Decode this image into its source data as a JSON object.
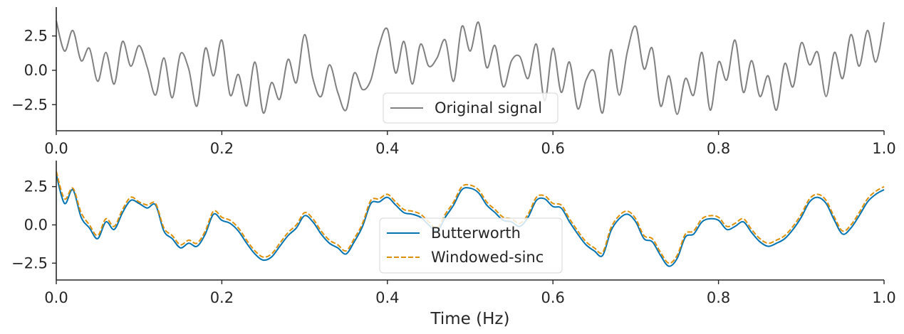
{
  "figure": {
    "xlabel": "Time (Hz)"
  },
  "chart_data": [
    {
      "type": "line",
      "xlim": [
        0.0,
        1.0
      ],
      "ylim": [
        -4.4,
        4.6
      ],
      "x_ticks": [
        0.0,
        0.2,
        0.4,
        0.6,
        0.8,
        1.0
      ],
      "x_tick_labels": [
        "0.0",
        "0.2",
        "0.4",
        "0.6",
        "0.8",
        "1.0"
      ],
      "y_ticks": [
        2.5,
        0.0,
        -2.5
      ],
      "y_tick_labels": [
        "2.5",
        "0.0",
        "−2.5"
      ],
      "legend_position": "bottom-center",
      "series": [
        {
          "name": "Original signal",
          "color": "#808080",
          "style": "solid",
          "x": [
            0.0,
            0.01,
            0.02,
            0.03,
            0.04,
            0.05,
            0.06,
            0.07,
            0.08,
            0.09,
            0.1,
            0.11,
            0.12,
            0.13,
            0.14,
            0.15,
            0.16,
            0.17,
            0.18,
            0.19,
            0.2,
            0.21,
            0.22,
            0.23,
            0.24,
            0.25,
            0.26,
            0.27,
            0.28,
            0.29,
            0.3,
            0.31,
            0.32,
            0.33,
            0.34,
            0.35,
            0.36,
            0.37,
            0.38,
            0.39,
            0.4,
            0.41,
            0.42,
            0.43,
            0.44,
            0.45,
            0.46,
            0.47,
            0.48,
            0.49,
            0.5,
            0.51,
            0.52,
            0.53,
            0.54,
            0.55,
            0.56,
            0.57,
            0.58,
            0.59,
            0.6,
            0.61,
            0.62,
            0.63,
            0.64,
            0.65,
            0.66,
            0.67,
            0.68,
            0.69,
            0.7,
            0.71,
            0.72,
            0.73,
            0.74,
            0.75,
            0.76,
            0.77,
            0.78,
            0.79,
            0.8,
            0.81,
            0.82,
            0.83,
            0.84,
            0.85,
            0.86,
            0.87,
            0.88,
            0.89,
            0.9,
            0.91,
            0.92,
            0.93,
            0.94,
            0.95,
            0.96,
            0.97,
            0.98,
            0.99,
            1.0
          ],
          "values": [
            3.6,
            1.4,
            2.9,
            0.7,
            1.6,
            -0.8,
            1.3,
            -1.0,
            2.1,
            0.3,
            1.8,
            0.2,
            -1.8,
            0.9,
            -2.0,
            1.2,
            0.1,
            -2.6,
            1.6,
            -0.4,
            2.2,
            -1.8,
            -0.3,
            -2.6,
            0.6,
            -3.1,
            -0.9,
            -2.1,
            0.8,
            -0.9,
            2.6,
            -0.6,
            -1.9,
            0.4,
            -1.6,
            -2.9,
            -0.2,
            -1.4,
            -0.7,
            1.8,
            3.0,
            -0.2,
            2.1,
            -1.0,
            1.9,
            0.3,
            0.9,
            2.2,
            -0.8,
            3.2,
            1.4,
            3.5,
            0.2,
            1.8,
            -1.2,
            0.7,
            1.0,
            -0.6,
            1.9,
            -2.2,
            1.6,
            -1.6,
            0.6,
            -2.8,
            -0.7,
            -0.1,
            -3.1,
            1.5,
            -1.8,
            1.4,
            3.2,
            0.1,
            1.6,
            -2.6,
            -0.4,
            -3.2,
            -0.6,
            -1.8,
            1.3,
            -2.9,
            0.6,
            -0.7,
            2.2,
            -1.6,
            0.7,
            -1.9,
            -0.4,
            -2.9,
            0.5,
            -1.2,
            2.0,
            0.4,
            1.3,
            -1.9,
            1.3,
            -0.6,
            2.6,
            0.3,
            2.9,
            0.6,
            3.5
          ]
        }
      ]
    },
    {
      "type": "line",
      "xlim": [
        0.0,
        1.0
      ],
      "ylim": [
        -3.6,
        4.2
      ],
      "x_ticks": [
        0.0,
        0.2,
        0.4,
        0.6,
        0.8,
        1.0
      ],
      "x_tick_labels": [
        "0.0",
        "0.2",
        "0.4",
        "0.6",
        "0.8",
        "1.0"
      ],
      "y_ticks": [
        2.5,
        0.0,
        -2.5
      ],
      "y_tick_labels": [
        "2.5",
        "0.0",
        "−2.5"
      ],
      "xlabel": "Time (Hz)",
      "legend_position": "bottom-center",
      "series": [
        {
          "name": "Butterworth",
          "color": "#0173b2",
          "style": "solid",
          "x": [
            0.0,
            0.01,
            0.02,
            0.03,
            0.04,
            0.05,
            0.06,
            0.07,
            0.08,
            0.09,
            0.1,
            0.11,
            0.12,
            0.13,
            0.14,
            0.15,
            0.16,
            0.17,
            0.18,
            0.19,
            0.2,
            0.21,
            0.22,
            0.23,
            0.24,
            0.25,
            0.26,
            0.27,
            0.28,
            0.29,
            0.3,
            0.31,
            0.32,
            0.33,
            0.34,
            0.35,
            0.36,
            0.37,
            0.38,
            0.39,
            0.4,
            0.41,
            0.42,
            0.43,
            0.44,
            0.45,
            0.46,
            0.47,
            0.48,
            0.49,
            0.5,
            0.51,
            0.52,
            0.53,
            0.54,
            0.55,
            0.56,
            0.57,
            0.58,
            0.59,
            0.6,
            0.61,
            0.62,
            0.63,
            0.64,
            0.65,
            0.66,
            0.67,
            0.68,
            0.69,
            0.7,
            0.71,
            0.72,
            0.73,
            0.74,
            0.75,
            0.76,
            0.77,
            0.78,
            0.79,
            0.8,
            0.81,
            0.82,
            0.83,
            0.84,
            0.85,
            0.86,
            0.87,
            0.88,
            0.89,
            0.9,
            0.91,
            0.92,
            0.93,
            0.94,
            0.95,
            0.96,
            0.97,
            0.98,
            0.99,
            1.0
          ],
          "values": [
            3.3,
            1.4,
            2.3,
            0.5,
            -0.2,
            -0.9,
            0.2,
            -0.3,
            0.8,
            1.6,
            1.4,
            1.1,
            1.3,
            -0.4,
            -0.9,
            -1.5,
            -1.2,
            -1.4,
            -0.6,
            0.7,
            0.3,
            0.1,
            -0.4,
            -1.2,
            -1.9,
            -2.3,
            -2.1,
            -1.4,
            -0.7,
            -0.2,
            0.6,
            0.2,
            -0.6,
            -1.2,
            -1.5,
            -1.9,
            -1.1,
            -0.1,
            1.4,
            1.5,
            1.8,
            1.3,
            0.8,
            0.7,
            0.5,
            0.0,
            -0.4,
            0.5,
            1.3,
            2.3,
            2.4,
            2.1,
            1.3,
            0.8,
            0.3,
            0.2,
            -0.1,
            0.5,
            1.6,
            1.7,
            1.2,
            1.1,
            0.2,
            -0.6,
            -1.3,
            -1.7,
            -2.0,
            -0.4,
            0.4,
            0.7,
            0.2,
            -0.9,
            -1.1,
            -2.0,
            -2.7,
            -2.2,
            -0.8,
            -0.6,
            0.2,
            0.4,
            0.3,
            -0.3,
            -0.1,
            0.2,
            -0.5,
            -1.1,
            -1.4,
            -1.2,
            -0.9,
            -0.3,
            0.5,
            1.5,
            1.8,
            1.4,
            0.3,
            -0.6,
            -0.2,
            0.6,
            1.5,
            2.0,
            2.3
          ]
        },
        {
          "name": "Windowed-sinc",
          "color": "#de8f05",
          "style": "dashed",
          "x": [
            0.0,
            0.01,
            0.02,
            0.03,
            0.04,
            0.05,
            0.06,
            0.07,
            0.08,
            0.09,
            0.1,
            0.11,
            0.12,
            0.13,
            0.14,
            0.15,
            0.16,
            0.17,
            0.18,
            0.19,
            0.2,
            0.21,
            0.22,
            0.23,
            0.24,
            0.25,
            0.26,
            0.27,
            0.28,
            0.29,
            0.3,
            0.31,
            0.32,
            0.33,
            0.34,
            0.35,
            0.36,
            0.37,
            0.38,
            0.39,
            0.4,
            0.41,
            0.42,
            0.43,
            0.44,
            0.45,
            0.46,
            0.47,
            0.48,
            0.49,
            0.5,
            0.51,
            0.52,
            0.53,
            0.54,
            0.55,
            0.56,
            0.57,
            0.58,
            0.59,
            0.6,
            0.61,
            0.62,
            0.63,
            0.64,
            0.65,
            0.66,
            0.67,
            0.68,
            0.69,
            0.7,
            0.71,
            0.72,
            0.73,
            0.74,
            0.75,
            0.76,
            0.77,
            0.78,
            0.79,
            0.8,
            0.81,
            0.82,
            0.83,
            0.84,
            0.85,
            0.86,
            0.87,
            0.88,
            0.89,
            0.9,
            0.91,
            0.92,
            0.93,
            0.94,
            0.95,
            0.96,
            0.97,
            0.98,
            0.99,
            1.0
          ],
          "values": [
            3.5,
            1.7,
            2.4,
            0.8,
            0.0,
            -0.7,
            0.4,
            -0.1,
            1.0,
            1.8,
            1.5,
            1.3,
            1.4,
            -0.2,
            -0.7,
            -1.3,
            -1.0,
            -1.2,
            -0.4,
            0.9,
            0.5,
            0.3,
            -0.2,
            -1.0,
            -1.7,
            -2.1,
            -1.9,
            -1.2,
            -0.5,
            0.0,
            0.8,
            0.4,
            -0.4,
            -1.0,
            -1.3,
            -1.7,
            -0.9,
            0.1,
            1.6,
            1.7,
            2.0,
            1.5,
            1.0,
            0.9,
            0.7,
            0.2,
            -0.2,
            0.7,
            1.5,
            2.5,
            2.6,
            2.3,
            1.5,
            1.0,
            0.5,
            0.4,
            0.1,
            0.7,
            1.8,
            1.9,
            1.4,
            1.3,
            0.4,
            -0.4,
            -1.1,
            -1.5,
            -1.8,
            -0.2,
            0.6,
            0.9,
            0.4,
            -0.7,
            -0.9,
            -1.8,
            -2.5,
            -2.0,
            -0.6,
            -0.4,
            0.4,
            0.6,
            0.5,
            -0.1,
            0.1,
            0.4,
            -0.3,
            -0.9,
            -1.2,
            -1.0,
            -0.7,
            -0.1,
            0.7,
            1.7,
            2.0,
            1.6,
            0.5,
            -0.4,
            0.0,
            0.8,
            1.7,
            2.2,
            2.5
          ]
        }
      ]
    }
  ]
}
